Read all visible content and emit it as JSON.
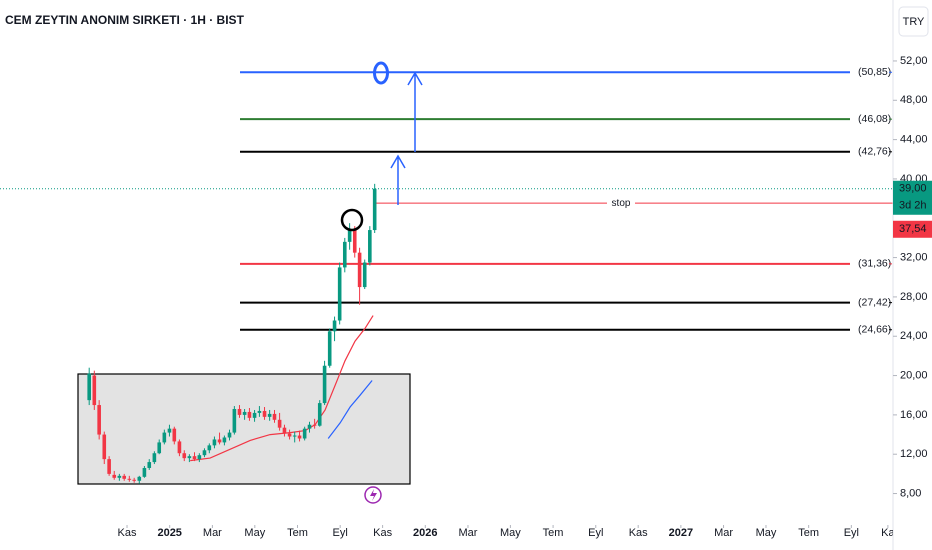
{
  "chart_data": {
    "type": "candlestick",
    "title": "CEM ZEYTIN ANONIM SIRKETI · 1H · BIST",
    "currency": "TRY",
    "xlim": [
      2024.336,
      2027.83
    ],
    "ylim": [
      4.8,
      58.2
    ],
    "xticks": [
      {
        "value": 2024.833,
        "label": "Kas"
      },
      {
        "value": 2025.0,
        "label": "2025"
      },
      {
        "value": 2025.167,
        "label": "Mar"
      },
      {
        "value": 2025.333,
        "label": "May"
      },
      {
        "value": 2025.5,
        "label": "Tem"
      },
      {
        "value": 2025.667,
        "label": "Eyl"
      },
      {
        "value": 2025.833,
        "label": "Kas"
      },
      {
        "value": 2026.0,
        "label": "2026"
      },
      {
        "value": 2026.167,
        "label": "Mar"
      },
      {
        "value": 2026.333,
        "label": "May"
      },
      {
        "value": 2026.5,
        "label": "Tem"
      },
      {
        "value": 2026.667,
        "label": "Eyl"
      },
      {
        "value": 2026.833,
        "label": "Kas"
      },
      {
        "value": 2027.0,
        "label": "2027"
      },
      {
        "value": 2027.167,
        "label": "Mar"
      },
      {
        "value": 2027.333,
        "label": "May"
      },
      {
        "value": 2027.5,
        "label": "Tem"
      },
      {
        "value": 2027.667,
        "label": "Eyl"
      },
      {
        "value": 2027.81,
        "label": "Ka"
      }
    ],
    "yticks": [
      {
        "value": 52,
        "label": "52,00"
      },
      {
        "value": 48,
        "label": "48,00"
      },
      {
        "value": 44,
        "label": "44,00"
      },
      {
        "value": 40,
        "label": "40,00"
      },
      {
        "value": 32,
        "label": "32,00"
      },
      {
        "value": 28,
        "label": "28,00"
      },
      {
        "value": 24,
        "label": "24,00"
      },
      {
        "value": 20,
        "label": "20,00"
      },
      {
        "value": 16,
        "label": "16,00"
      },
      {
        "value": 12,
        "label": "12,00"
      },
      {
        "value": 8,
        "label": "8,00"
      }
    ],
    "up_color": "#089981",
    "down_color": "#f23645",
    "x": [
      2024.685,
      2024.705,
      2024.724,
      2024.744,
      2024.763,
      2024.783,
      2024.803,
      2024.822,
      2024.842,
      2024.861,
      2024.881,
      2024.901,
      2024.92,
      2024.94,
      2024.959,
      2024.979,
      2024.999,
      2025.018,
      2025.038,
      2025.057,
      2025.077,
      2025.097,
      2025.116,
      2025.136,
      2025.155,
      2025.175,
      2025.195,
      2025.214,
      2025.234,
      2025.253,
      2025.273,
      2025.293,
      2025.312,
      2025.332,
      2025.351,
      2025.371,
      2025.391,
      2025.41,
      2025.43,
      2025.449,
      2025.469,
      2025.489,
      2025.508,
      2025.528,
      2025.547,
      2025.567,
      2025.587,
      2025.606,
      2025.626,
      2025.645,
      2025.665,
      2025.685,
      2025.704,
      2025.724,
      2025.743,
      2025.763,
      2025.783,
      2025.802
    ],
    "open": [
      17.5,
      20,
      17,
      14,
      11.5,
      9.9,
      9.6,
      9.8,
      9.5,
      9.4,
      9.3,
      9.7,
      10.6,
      11.2,
      12.1,
      13.2,
      14.2,
      14.6,
      13.3,
      12.1,
      11.6,
      11.8,
      11.5,
      11.9,
      12.4,
      12.9,
      13.5,
      13.2,
      13.7,
      14.2,
      16.6,
      16,
      16.3,
      15.7,
      16.2,
      16.4,
      15.8,
      16.1,
      15.5,
      14.7,
      14.1,
      13.8,
      13.9,
      13.6,
      14.6,
      15,
      14.9,
      17.2,
      21,
      24.5,
      25.6,
      31,
      33.6,
      34.8,
      32.5,
      29,
      31.5,
      34.8
    ],
    "high": [
      20.8,
      20.5,
      17.5,
      14.3,
      11.8,
      10.3,
      10,
      10,
      9.8,
      9.6,
      9.8,
      10.8,
      11.5,
      12.3,
      13.5,
      14.5,
      15,
      14.8,
      13.5,
      12.4,
      12,
      12.2,
      12.1,
      12.6,
      13.1,
      13.8,
      14.2,
      13.9,
      14.5,
      16.9,
      17,
      16.6,
      16.7,
      16.5,
      16.9,
      16.8,
      16.5,
      16.5,
      16.2,
      15,
      14.5,
      14.3,
      14.4,
      14.8,
      15.3,
      15.6,
      17.5,
      21.5,
      24.8,
      26,
      31.5,
      34,
      35.5,
      35.2,
      33,
      31.8,
      35.2,
      39.5
    ],
    "low": [
      17,
      16.5,
      13.5,
      11,
      9.8,
      9.4,
      9.3,
      9.3,
      9.2,
      9.1,
      9,
      9.6,
      10.4,
      11,
      12,
      13,
      13.8,
      13,
      11.8,
      11.3,
      11.2,
      11.3,
      11.2,
      11.7,
      12.1,
      12.6,
      13,
      12.9,
      13.4,
      14,
      15.7,
      15.5,
      15.4,
      15.3,
      15.8,
      15.5,
      15.4,
      15.2,
      14.4,
      13.8,
      13.5,
      13.2,
      13.3,
      13.4,
      14.2,
      14.6,
      14.8,
      17,
      20.8,
      23.5,
      25.2,
      30.5,
      32.8,
      32,
      27.2,
      28.8,
      31.2,
      34.5
    ],
    "close": [
      20.2,
      17,
      14,
      11.5,
      10,
      9.6,
      9.8,
      9.5,
      9.4,
      9.3,
      9.7,
      10.6,
      11.2,
      12.1,
      13.2,
      14.2,
      14.6,
      13.3,
      12.1,
      11.6,
      11.8,
      11.5,
      11.9,
      12.4,
      12.9,
      13.5,
      13.2,
      13.7,
      14.2,
      16.6,
      16,
      16.3,
      15.7,
      16.2,
      16.4,
      15.8,
      16.1,
      15.5,
      14.7,
      14.1,
      13.8,
      13.9,
      13.6,
      14.6,
      15,
      14.9,
      17.2,
      21,
      24.5,
      25.6,
      31,
      33.6,
      34.8,
      32.5,
      29,
      31.5,
      34.8,
      39
    ],
    "moving_averages": [
      {
        "color": "#f23645",
        "x": [
          2025.08,
          2025.158,
          2025.236,
          2025.315,
          2025.393,
          2025.471,
          2025.53,
          2025.569,
          2025.608,
          2025.647,
          2025.686,
          2025.725,
          2025.764,
          2025.796
        ],
        "values": [
          11.35,
          11.6,
          12.5,
          13.4,
          14.0,
          14.2,
          14.4,
          15.0,
          16.5,
          19,
          21.5,
          23.5,
          24.8,
          26.1
        ]
      },
      {
        "color": "#2962ff",
        "x": [
          2025.62,
          2025.667,
          2025.706,
          2025.745,
          2025.792
        ],
        "values": [
          13.6,
          15.2,
          16.8,
          18,
          19.5
        ]
      }
    ],
    "levels": [
      {
        "value": 50.85,
        "label": "(50,85)",
        "color": "#2962ff"
      },
      {
        "value": 46.08,
        "label": "(46,08)",
        "color": "#2e7d32"
      },
      {
        "value": 42.76,
        "label": "(42,76)",
        "color": "#000000"
      },
      {
        "value": 31.36,
        "label": "(31,36)",
        "color": "#f23645"
      },
      {
        "value": 27.42,
        "label": "(27,42)",
        "color": "#000000"
      },
      {
        "value": 24.66,
        "label": "(24,66)",
        "color": "#000000"
      }
    ],
    "stop": {
      "value": 37.54,
      "label": "stop",
      "price_label": "37,54",
      "color": "#f23645"
    },
    "last_price": {
      "value": 39,
      "label": "39,00",
      "countdown": "3d 2h",
      "color": "#089981"
    }
  }
}
